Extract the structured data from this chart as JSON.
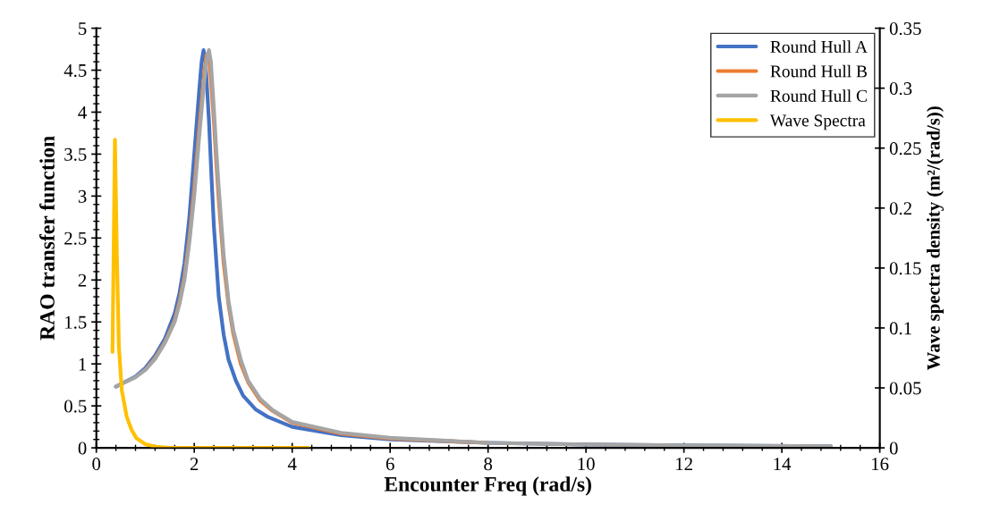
{
  "chart_data": {
    "type": "line",
    "xlabel": "Encounter Freq (rad/s)",
    "ylabel": "RAO transfer function",
    "y2label": "Wave spectra density (m²/(rad/s))",
    "xlim": [
      0,
      16
    ],
    "xticks": [
      0,
      2,
      4,
      6,
      8,
      10,
      12,
      14,
      16
    ],
    "ylim": [
      0,
      5
    ],
    "yticks": [
      0,
      0.5,
      1,
      1.5,
      2,
      2.5,
      3,
      3.5,
      4,
      4.5,
      5
    ],
    "y2lim": [
      0,
      0.35
    ],
    "y2ticks": [
      0,
      0.05,
      0.1,
      0.15,
      0.2,
      0.25,
      0.3,
      0.35
    ],
    "legend": "top right",
    "grid": false,
    "marker": "none",
    "line_style": "solid",
    "series": [
      {
        "name": "Round Hull A",
        "color": "#4472c4",
        "x": [
          0.4,
          0.8,
          1.0,
          1.2,
          1.4,
          1.6,
          1.7,
          1.8,
          1.9,
          2.0,
          2.1,
          2.15,
          2.19,
          2.23,
          2.3,
          2.35,
          2.4,
          2.5,
          2.6,
          2.7,
          2.85,
          3.0,
          3.25,
          3.5,
          4.0,
          5.0,
          6.0,
          8.0,
          10.0,
          12.0,
          15.0
        ],
        "values": [
          0.73,
          0.85,
          0.95,
          1.1,
          1.3,
          1.6,
          1.85,
          2.2,
          2.75,
          3.5,
          4.25,
          4.6,
          4.74,
          4.6,
          3.9,
          3.25,
          2.65,
          1.8,
          1.35,
          1.05,
          0.8,
          0.62,
          0.46,
          0.37,
          0.25,
          0.15,
          0.1,
          0.06,
          0.04,
          0.03,
          0.02
        ]
      },
      {
        "name": "Round Hull B",
        "color": "#ed7d31",
        "x": [
          1.0,
          1.2,
          1.4,
          1.6,
          1.7,
          1.8,
          1.9,
          2.0,
          2.1,
          2.2,
          2.25,
          2.28,
          2.32,
          2.4,
          2.45,
          2.5,
          2.6,
          2.7,
          2.8,
          2.95,
          3.1,
          3.35,
          3.6,
          4.0,
          5.0,
          6.0,
          8.0
        ],
        "values": [
          0.93,
          1.07,
          1.26,
          1.52,
          1.75,
          2.05,
          2.5,
          3.1,
          3.8,
          4.45,
          4.68,
          4.7,
          4.55,
          3.9,
          3.4,
          2.95,
          2.2,
          1.7,
          1.35,
          1.0,
          0.78,
          0.56,
          0.44,
          0.3,
          0.17,
          0.11,
          0.06
        ]
      },
      {
        "name": "Round Hull C",
        "color": "#a5a5a5",
        "x": [
          0.4,
          0.8,
          1.0,
          1.2,
          1.4,
          1.6,
          1.7,
          1.8,
          1.9,
          2.0,
          2.1,
          2.2,
          2.26,
          2.3,
          2.34,
          2.4,
          2.45,
          2.5,
          2.6,
          2.7,
          2.8,
          2.95,
          3.1,
          3.35,
          3.6,
          4.0,
          5.0,
          6.0,
          8.0,
          10.0,
          12.0,
          15.0
        ],
        "values": [
          0.73,
          0.84,
          0.93,
          1.06,
          1.25,
          1.5,
          1.72,
          2.0,
          2.45,
          3.0,
          3.7,
          4.35,
          4.65,
          4.74,
          4.6,
          4.05,
          3.55,
          3.1,
          2.3,
          1.75,
          1.4,
          1.05,
          0.8,
          0.58,
          0.45,
          0.31,
          0.18,
          0.12,
          0.06,
          0.04,
          0.03,
          0.02
        ]
      },
      {
        "name": "Wave Spectra",
        "color": "#ffc000",
        "axis": "y2",
        "x": [
          0.33,
          0.38,
          0.42,
          0.46,
          0.52,
          0.62,
          0.72,
          0.82,
          1.0,
          1.2,
          1.5,
          2.0,
          4.33
        ],
        "values": [
          0.08,
          0.257,
          0.16,
          0.085,
          0.048,
          0.026,
          0.015,
          0.008,
          0.003,
          0.001,
          0.0,
          0.0,
          0.0
        ]
      }
    ]
  }
}
